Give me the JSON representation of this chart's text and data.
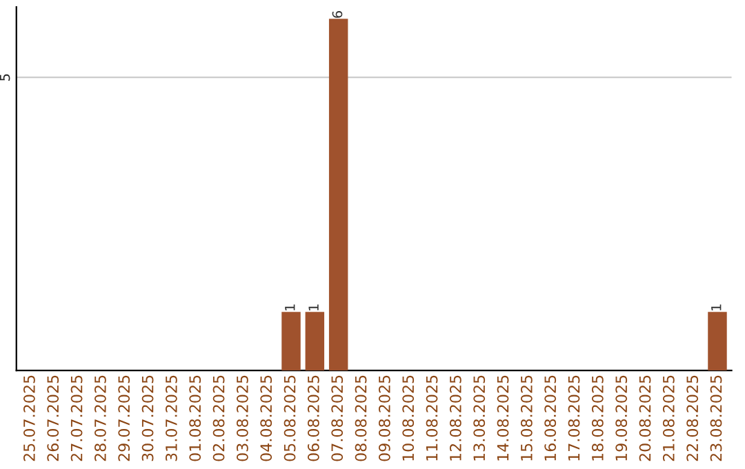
{
  "chart_data": {
    "type": "bar",
    "categories": [
      "25.07.2025",
      "26.07.2025",
      "27.07.2025",
      "28.07.2025",
      "29.07.2025",
      "30.07.2025",
      "31.07.2025",
      "01.08.2025",
      "02.08.2025",
      "03.08.2025",
      "04.08.2025",
      "05.08.2025",
      "06.08.2025",
      "07.08.2025",
      "08.08.2025",
      "09.08.2025",
      "10.08.2025",
      "11.08.2025",
      "12.08.2025",
      "13.08.2025",
      "14.08.2025",
      "15.08.2025",
      "16.08.2025",
      "17.08.2025",
      "18.08.2025",
      "19.08.2025",
      "20.08.2025",
      "21.08.2025",
      "22.08.2025",
      "23.08.2025"
    ],
    "values": [
      0,
      0,
      0,
      0,
      0,
      0,
      0,
      0,
      0,
      0,
      0,
      1,
      1,
      6,
      0,
      0,
      0,
      0,
      0,
      0,
      0,
      0,
      0,
      0,
      0,
      0,
      0,
      0,
      0,
      1
    ],
    "value_labels": [
      null,
      null,
      null,
      null,
      null,
      null,
      null,
      null,
      null,
      null,
      null,
      "1",
      "1",
      "6",
      null,
      null,
      null,
      null,
      null,
      null,
      null,
      null,
      null,
      null,
      null,
      null,
      null,
      null,
      null,
      "1"
    ],
    "color": "#a0522d",
    "ylim": [
      0,
      6.2
    ],
    "yticks": [
      5
    ],
    "grid": "y"
  }
}
